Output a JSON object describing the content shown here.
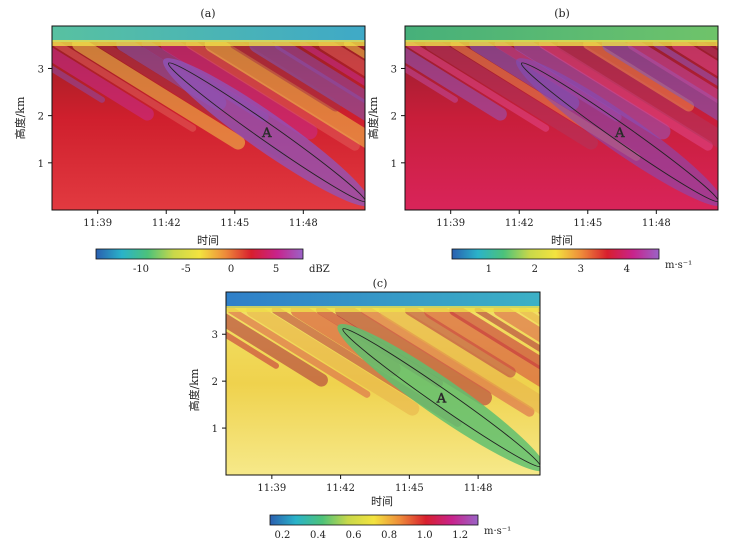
{
  "figure": {
    "colors": {
      "background": "#ffffff",
      "frame": "#111111",
      "ellipse": "#222222"
    }
  },
  "chart_data": [
    {
      "type": "heatmap",
      "panel_label": "(a)",
      "xlabel": "时间",
      "ylabel": "高度/km",
      "x_ticks": [
        "11:39",
        "11:42",
        "11:45",
        "11:48"
      ],
      "x_tick_minutes": [
        39,
        42,
        45,
        48
      ],
      "xlim": [
        37.0,
        50.7
      ],
      "y_ticks": [
        "1",
        "2",
        "3"
      ],
      "y_tick_values": [
        1,
        2,
        3
      ],
      "ylim": [
        0.0,
        3.9
      ],
      "colorbar": {
        "unit": "dBZ",
        "tick_labels": [
          "-10",
          "-5",
          "0",
          "5"
        ],
        "tick_values": [
          -10,
          -5,
          0,
          5
        ],
        "range": [
          -15,
          8
        ],
        "colors": [
          "#2a5fb0",
          "#2ab3c9",
          "#4cc27a",
          "#c8d84a",
          "#f3e33f",
          "#ee8b3a",
          "#d81f2e",
          "#c8238c",
          "#9a63c7"
        ]
      },
      "annotation": {
        "text": "A",
        "center": [
          46.4,
          1.65
        ],
        "semi_major_minutes": 4.3,
        "semi_minor_km": 0.18,
        "slope_km_per_min": -0.34
      }
    },
    {
      "type": "heatmap",
      "panel_label": "(b)",
      "xlabel": "时间",
      "ylabel": "高度/km",
      "x_ticks": [
        "11:39",
        "11:42",
        "11:45",
        "11:48"
      ],
      "x_tick_minutes": [
        39,
        42,
        45,
        48
      ],
      "xlim": [
        37.0,
        50.7
      ],
      "y_ticks": [
        "1",
        "2",
        "3"
      ],
      "y_tick_values": [
        1,
        2,
        3
      ],
      "ylim": [
        0.0,
        3.9
      ],
      "colorbar": {
        "unit": "m·s⁻¹",
        "tick_labels": [
          "1",
          "2",
          "3",
          "4"
        ],
        "tick_values": [
          1,
          2,
          3,
          4
        ],
        "range": [
          0.2,
          4.7
        ],
        "colors": [
          "#2a5fb0",
          "#2ab3c9",
          "#4cc27a",
          "#c8d84a",
          "#f3e33f",
          "#ee8b3a",
          "#d81f2e",
          "#c8238c",
          "#9a63c7"
        ]
      },
      "annotation": {
        "text": "A",
        "center": [
          46.4,
          1.65
        ],
        "semi_major_minutes": 4.3,
        "semi_minor_km": 0.18,
        "slope_km_per_min": -0.34
      }
    },
    {
      "type": "heatmap",
      "panel_label": "(c)",
      "xlabel": "时间",
      "ylabel": "高度/km",
      "x_ticks": [
        "11:39",
        "11:42",
        "11:45",
        "11:48"
      ],
      "x_tick_minutes": [
        39,
        42,
        45,
        48
      ],
      "xlim": [
        37.0,
        50.7
      ],
      "y_ticks": [
        "1",
        "2",
        "3"
      ],
      "y_tick_values": [
        1,
        2,
        3
      ],
      "ylim": [
        0.0,
        3.9
      ],
      "colorbar": {
        "unit": "m·s⁻¹",
        "tick_labels": [
          "0.2",
          "0.4",
          "0.6",
          "0.8",
          "1.0",
          "1.2"
        ],
        "tick_values": [
          0.2,
          0.4,
          0.6,
          0.8,
          1.0,
          1.2
        ],
        "range": [
          0.13,
          1.3
        ],
        "colors": [
          "#2a5fb0",
          "#2ab3c9",
          "#4cc27a",
          "#c8d84a",
          "#f3e33f",
          "#ee8b3a",
          "#d81f2e",
          "#c8238c",
          "#9a63c7"
        ]
      },
      "annotation": {
        "text": "A",
        "center": [
          46.4,
          1.65
        ],
        "semi_major_minutes": 4.3,
        "semi_minor_km": 0.18,
        "slope_km_per_min": -0.34
      }
    }
  ]
}
